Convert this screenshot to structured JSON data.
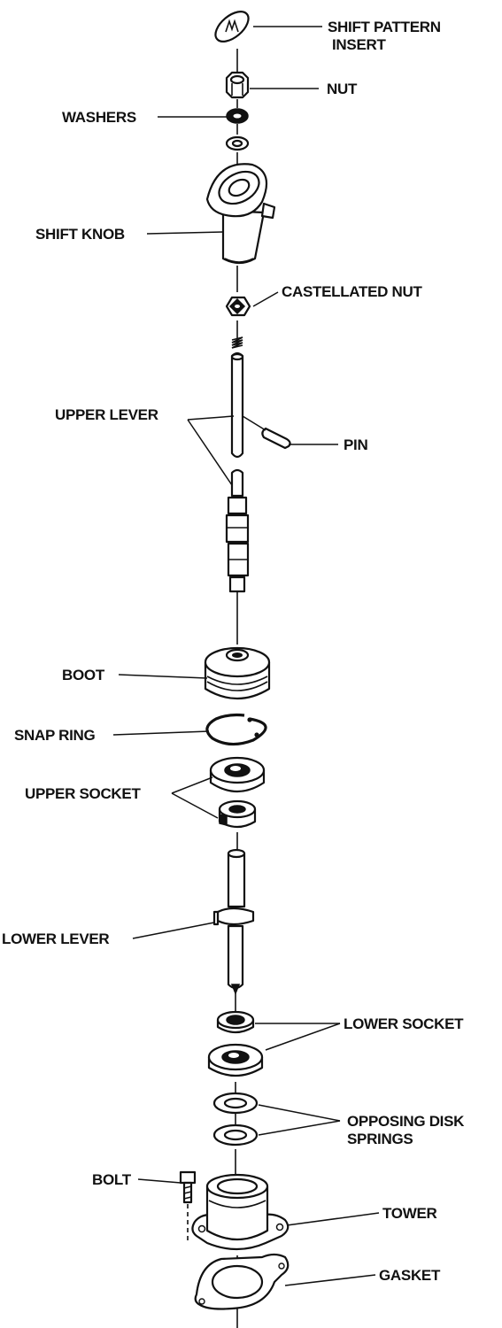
{
  "labels": {
    "shift_pattern_insert_1": "SHIFT PATTERN",
    "shift_pattern_insert_2": "INSERT",
    "nut": "NUT",
    "washers": "WASHERS",
    "shift_knob": "SHIFT KNOB",
    "castellated_nut": "CASTELLATED NUT",
    "upper_lever": "UPPER LEVER",
    "pin": "PIN",
    "boot": "BOOT",
    "snap_ring": "SNAP RING",
    "upper_socket": "UPPER SOCKET",
    "lower_lever": "LOWER LEVER",
    "lower_socket": "LOWER SOCKET",
    "opposing_disk_springs_1": "OPPOSING DISK",
    "opposing_disk_springs_2": "SPRINGS",
    "bolt": "BOLT",
    "tower": "TOWER",
    "gasket": "GASKET"
  }
}
